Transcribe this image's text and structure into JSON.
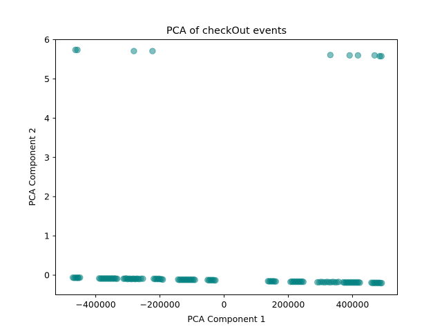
{
  "chart_data": {
    "type": "scatter",
    "title": "PCA of checkOut events",
    "xlabel": "PCA Component 1",
    "ylabel": "PCA Component 2",
    "xlim": [
      -525000,
      540000
    ],
    "ylim": [
      -0.5,
      6.0
    ],
    "xticks": [
      -400000,
      -200000,
      0,
      200000,
      400000
    ],
    "xtick_labels": [
      "−400000",
      "−200000",
      "0",
      "200000",
      "400000"
    ],
    "yticks": [
      0,
      1,
      2,
      3,
      4,
      5,
      6
    ],
    "ytick_labels": [
      "0",
      "1",
      "2",
      "3",
      "4",
      "5",
      "6"
    ],
    "grid": false,
    "marker_color": "#008080",
    "marker_alpha": 0.5,
    "series": [
      {
        "x": [
          -470000,
          -466000,
          -462000,
          -458000,
          -455000,
          -452000,
          -448000,
          -388000,
          -384000,
          -380000,
          -376000,
          -372000,
          -368000,
          -364000,
          -360000,
          -356000,
          -352000,
          -348000,
          -344000,
          -340000,
          -336000,
          -332000,
          -312000,
          -308000,
          -304000,
          -300000,
          -296000,
          -292000,
          -288000,
          -284000,
          -280000,
          -276000,
          -272000,
          -268000,
          -264000,
          -258000,
          -252000,
          -218000,
          -214000,
          -210000,
          -206000,
          -202000,
          -198000,
          -194000,
          -190000,
          -142000,
          -138000,
          -134000,
          -130000,
          -126000,
          -122000,
          -118000,
          -114000,
          -110000,
          -106000,
          -102000,
          -98000,
          -94000,
          -90000,
          -50000,
          -46000,
          -42000,
          -38000,
          -34000,
          -30000,
          -26000,
          138000,
          142000,
          146000,
          150000,
          154000,
          158000,
          162000,
          208000,
          212000,
          216000,
          220000,
          224000,
          228000,
          232000,
          236000,
          240000,
          244000,
          248000,
          292000,
          298000,
          304000,
          310000,
          316000,
          322000,
          328000,
          334000,
          340000,
          346000,
          352000,
          358000,
          372000,
          376000,
          380000,
          384000,
          388000,
          392000,
          396000,
          400000,
          404000,
          408000,
          412000,
          416000,
          420000,
          424000,
          460000,
          464000,
          468000,
          472000,
          476000,
          480000,
          484000,
          488000,
          492000,
          -462000,
          -456000,
          -280000,
          -222000,
          332000,
          392000,
          418000,
          470000,
          486000,
          491000
        ],
        "y": [
          -0.07,
          -0.08,
          -0.07,
          -0.08,
          -0.07,
          -0.08,
          -0.07,
          -0.09,
          -0.1,
          -0.09,
          -0.1,
          -0.09,
          -0.1,
          -0.09,
          -0.1,
          -0.09,
          -0.1,
          -0.09,
          -0.1,
          -0.09,
          -0.1,
          -0.1,
          -0.1,
          -0.1,
          -0.09,
          -0.11,
          -0.1,
          -0.1,
          -0.11,
          -0.1,
          -0.1,
          -0.11,
          -0.1,
          -0.1,
          -0.11,
          -0.1,
          -0.1,
          -0.1,
          -0.11,
          -0.1,
          -0.11,
          -0.1,
          -0.11,
          -0.11,
          -0.12,
          -0.12,
          -0.13,
          -0.12,
          -0.13,
          -0.12,
          -0.13,
          -0.12,
          -0.13,
          -0.12,
          -0.13,
          -0.12,
          -0.13,
          -0.12,
          -0.13,
          -0.13,
          -0.14,
          -0.13,
          -0.14,
          -0.13,
          -0.14,
          -0.14,
          -0.16,
          -0.17,
          -0.16,
          -0.17,
          -0.16,
          -0.17,
          -0.17,
          -0.18,
          -0.17,
          -0.18,
          -0.17,
          -0.18,
          -0.17,
          -0.18,
          -0.17,
          -0.18,
          -0.17,
          -0.18,
          -0.19,
          -0.19,
          -0.18,
          -0.19,
          -0.19,
          -0.18,
          -0.19,
          -0.19,
          -0.18,
          -0.19,
          -0.19,
          -0.18,
          -0.19,
          -0.2,
          -0.19,
          -0.2,
          -0.19,
          -0.2,
          -0.19,
          -0.2,
          -0.19,
          -0.2,
          -0.19,
          -0.2,
          -0.19,
          -0.2,
          -0.2,
          -0.21,
          -0.2,
          -0.21,
          -0.2,
          -0.21,
          -0.2,
          -0.21,
          -0.21,
          5.73,
          5.73,
          5.7,
          5.7,
          5.6,
          5.59,
          5.59,
          5.59,
          5.57,
          5.57
        ]
      }
    ]
  }
}
